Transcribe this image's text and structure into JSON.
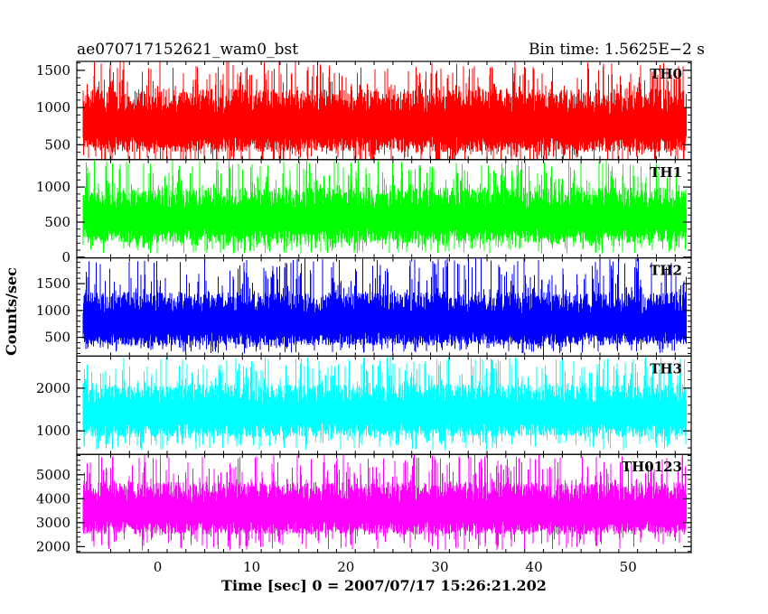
{
  "chart_data": {
    "type": "line",
    "title_left": "ae070717152621_wam0_bst",
    "title_right": "Bin time: 1.5625E−2 s",
    "xlabel": "Time [sec] 0 = 2007/07/17 15:26:21.202",
    "ylabel": "Counts/sec",
    "xlim": [
      -8.6,
      56.7
    ],
    "data_range": [
      -7.9,
      56.1
    ],
    "bin_time": 0.015625,
    "x_ticks": [
      0,
      10,
      20,
      30,
      40,
      50
    ],
    "x_tick_labels": [
      "0",
      "10",
      "20",
      "30",
      "40",
      "50"
    ],
    "grid": false,
    "panels": [
      {
        "name": "TH0",
        "color": "#ff0000",
        "ylim": [
          300,
          1620
        ],
        "y_ticks": [
          500,
          1000,
          1500
        ],
        "y_tick_labels": [
          "500",
          "1000",
          "1500"
        ],
        "mean": 760,
        "band_low": 400,
        "band_high": 1250,
        "min": 200,
        "max": 1620
      },
      {
        "name": "TH1",
        "color": "#00ff00",
        "ylim": [
          -10,
          1390
        ],
        "y_ticks": [
          0,
          500,
          1000
        ],
        "y_tick_labels": [
          "0",
          "500",
          "1000"
        ],
        "mean": 560,
        "band_low": 200,
        "band_high": 1000,
        "min": 50,
        "max": 1390
      },
      {
        "name": "TH2",
        "color": "#0000ff",
        "ylim": [
          150,
          1980
        ],
        "y_ticks": [
          500,
          1000,
          1500
        ],
        "y_tick_labels": [
          "500",
          "1000",
          "1500"
        ],
        "mean": 760,
        "band_low": 350,
        "band_high": 1350,
        "min": 200,
        "max": 1980
      },
      {
        "name": "TH3",
        "color": "#00ffff",
        "ylim": [
          450,
          2750
        ],
        "y_ticks": [
          1000,
          2000
        ],
        "y_tick_labels": [
          "1000",
          "2000"
        ],
        "mean": 1430,
        "band_low": 850,
        "band_high": 2100,
        "min": 550,
        "max": 2750
      },
      {
        "name": "TH0123",
        "color": "#ff00ff",
        "ylim": [
          1750,
          5850
        ],
        "y_ticks": [
          2000,
          3000,
          4000,
          5000
        ],
        "y_tick_labels": [
          "2000",
          "3000",
          "4000",
          "5000"
        ],
        "mean": 3480,
        "band_low": 2500,
        "band_high": 4700,
        "min": 1850,
        "max": 5850
      }
    ]
  }
}
